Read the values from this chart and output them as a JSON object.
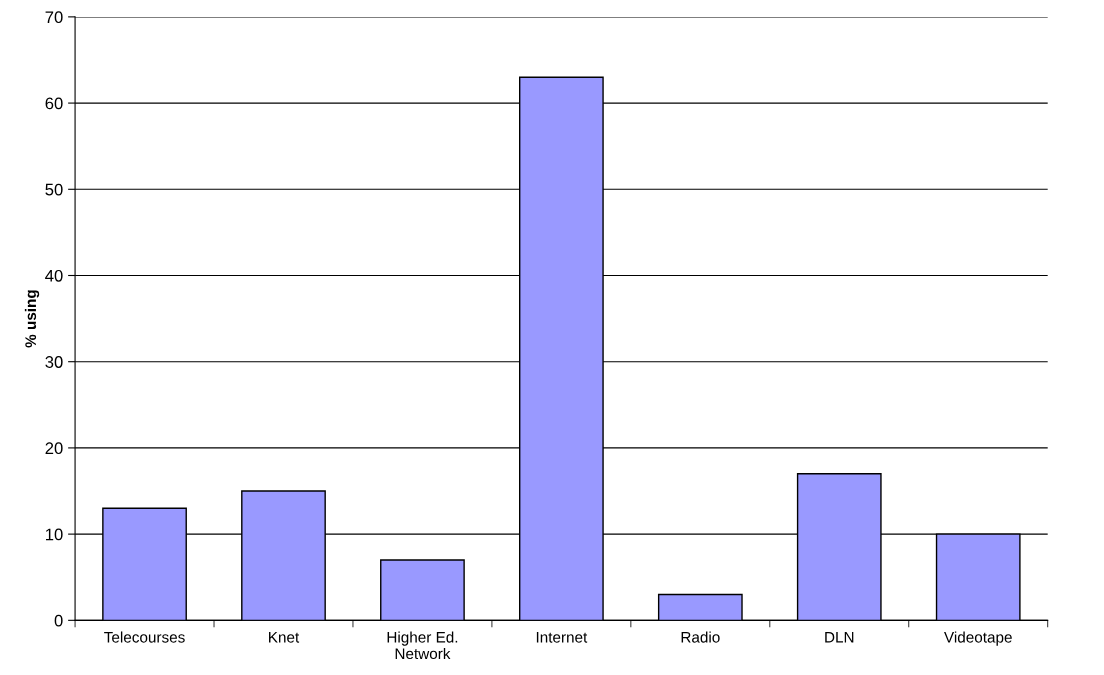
{
  "chart_data": {
    "type": "bar",
    "ylabel": "% using",
    "categories": [
      "Telecourses",
      "Knet",
      "Higher Ed.\nNetwork",
      "Internet",
      "Radio",
      "DLN",
      "Videotape"
    ],
    "values": [
      13,
      15,
      7,
      63,
      3,
      17,
      10
    ],
    "color": "#9999ff",
    "ylim": [
      0,
      70
    ],
    "yticks": [
      0,
      10,
      20,
      30,
      40,
      50,
      60,
      70
    ],
    "grid": "y"
  }
}
